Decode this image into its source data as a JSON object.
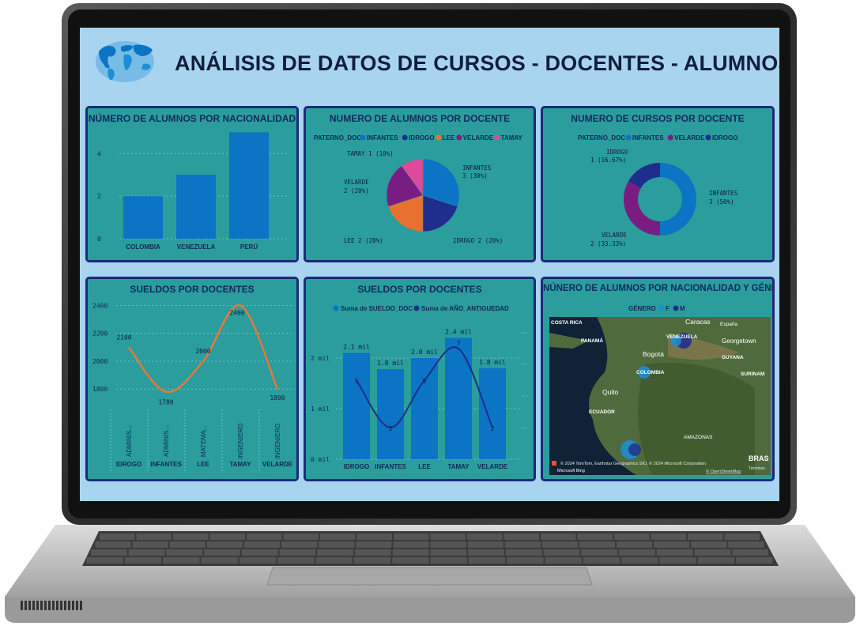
{
  "header": {
    "title": "ANÁLISIS DE DATOS DE CURSOS - DOCENTES - ALUMNOS",
    "logo_icon": "world-map-icon"
  },
  "colors": {
    "screen_bg": "#a9d4ef",
    "panel_bg": "#2a9d9c",
    "panel_border": "#1b2a7a",
    "bar": "#0b74c4",
    "dark_navy": "#1f2d8c",
    "orange": "#e87030",
    "purple": "#7a1d82",
    "pink": "#e0489b",
    "line_orange": "#e8773a"
  },
  "panels": {
    "p1": {
      "title": "NÚMERO DE ALUMNOS POR NACIONALIDAD"
    },
    "p2": {
      "title": "NUMERO DE ALUMNOS POR DOCENTE",
      "legend_title": "PATERNO_DOC"
    },
    "p3": {
      "title": "NUMERO DE CURSOS POR DOCENTE",
      "legend_title": "PATERNO_DOC"
    },
    "p4": {
      "title": "SUELDOS POR DOCENTES"
    },
    "p5": {
      "title": "SUELDOS POR DOCENTES"
    },
    "p6": {
      "title": "NÚNERO DE ALUMNOS POR NACIONALIDAD Y GÉNERO",
      "legend_title": "GÉNERO",
      "legend": [
        {
          "name": "F",
          "color": "#1b8fd6"
        },
        {
          "name": "M",
          "color": "#1f2d8c"
        }
      ],
      "places": [
        "COSTA RICA",
        "PANAMÁ",
        "VENEZUELA",
        "Caracas",
        "España",
        "Georgetown",
        "GUYANA",
        "SURINAM",
        "Bogotá",
        "COLOMBIA",
        "Quito",
        "ECUADOR",
        "AMAZONAS",
        "BRAS"
      ],
      "attribution": "© 2024 TomTom, Earthstar Geographics SIO, © 2024 Microsoft Corporation",
      "terms": "Términos",
      "osm": "© OpenStreetMap",
      "bing": "Microsoft Bing"
    }
  },
  "chart_data": [
    {
      "type": "bar",
      "title": "NÚMERO DE ALUMNOS POR NACIONALIDAD",
      "categories": [
        "COLOMBIA",
        "VENEZUELA",
        "PERÚ"
      ],
      "values": [
        2,
        3,
        5
      ],
      "yticks": [
        "0",
        "2",
        "4"
      ],
      "ylim": [
        0,
        5
      ],
      "grid": true
    },
    {
      "type": "pie",
      "title": "NUMERO DE ALUMNOS POR DOCENTE",
      "legend_title": "PATERNO_DOC",
      "slices": [
        {
          "label": "INFANTES",
          "value": 3,
          "pct": "30%",
          "color": "#0b74c4"
        },
        {
          "label": "IDROGO",
          "value": 2,
          "pct": "20%",
          "color": "#1f2d8c"
        },
        {
          "label": "LEE",
          "value": 2,
          "pct": "20%",
          "color": "#e87030"
        },
        {
          "label": "VELARDE",
          "value": 2,
          "pct": "20%",
          "color": "#7a1d82"
        },
        {
          "label": "TAMAY",
          "value": 1,
          "pct": "10%",
          "color": "#e0489b"
        }
      ],
      "data_labels": [
        "INFANTES",
        "3 (30%)",
        "IDROGO 2 (20%)",
        "LEE 2 (20%)",
        "VELARDE",
        "2 (20%)",
        "TAMAY 1 (10%)"
      ]
    },
    {
      "type": "pie",
      "subtype": "donut",
      "title": "NUMERO DE CURSOS POR DOCENTE",
      "legend_title": "PATERNO_DOC",
      "slices": [
        {
          "label": "INFANTES",
          "value": 3,
          "pct": "50%",
          "color": "#0b74c4"
        },
        {
          "label": "VELARDE",
          "value": 2,
          "pct": "33.33%",
          "color": "#7a1d82"
        },
        {
          "label": "IDROGO",
          "value": 1,
          "pct": "16.67%",
          "color": "#1f2d8c"
        }
      ],
      "data_labels": [
        "IDROGO",
        "1 (16.67%)",
        "INFANTES",
        "3 (50%)",
        "VELARDE",
        "2 (33.33%)"
      ]
    },
    {
      "type": "line",
      "title": "SUELDOS POR DOCENTES",
      "categories": [
        {
          "role": "ADMINIS...",
          "name": "IDROGO"
        },
        {
          "role": "ADMINIS...",
          "name": "INFANTES"
        },
        {
          "role": "MATEMA...",
          "name": "LEE"
        },
        {
          "role": "INGENIERO",
          "name": "TAMAY"
        },
        {
          "role": "INGENIERO",
          "name": "VELARDE"
        }
      ],
      "values": [
        2100,
        1780,
        2000,
        2400,
        1800
      ],
      "value_labels": [
        "2100",
        "1780",
        "2000",
        "2400",
        "1800"
      ],
      "yticks": [
        "1800",
        "2000",
        "2200",
        "2400"
      ],
      "ylim": [
        1750,
        2420
      ],
      "color": "#e8773a"
    },
    {
      "type": "bar",
      "title": "SUELDOS POR DOCENTES",
      "categories": [
        "IDROGO",
        "INFANTES",
        "LEE",
        "TAMAY",
        "VELARDE"
      ],
      "series": [
        {
          "name": "Suma de SUELDO_DOC",
          "type": "bar",
          "values": [
            2100,
            1780,
            2000,
            2400,
            1800
          ],
          "labels": [
            "2.1 mil",
            "1.8 mil",
            "2.0 mil",
            "2.4 mil",
            "1.8 mil"
          ],
          "color": "#0b74c4"
        },
        {
          "name": "Suma de AÑO_ANTIGUEDAD",
          "type": "line",
          "values": [
            5,
            2,
            5,
            7,
            2
          ],
          "labels": [
            "5",
            "2",
            "5",
            "7",
            "2"
          ],
          "color": "#1f2d8c"
        }
      ],
      "yticks": [
        "0 mil",
        "1 mil",
        "2 mil"
      ],
      "ylim": [
        0,
        2600
      ],
      "y2lim": [
        0,
        8
      ]
    }
  ]
}
